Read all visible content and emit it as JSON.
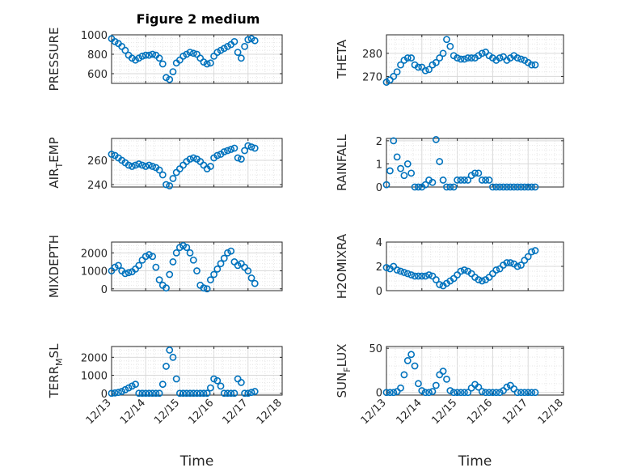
{
  "figure_title": "Figure 2 medium",
  "chart_data": [
    {
      "type": "scatter",
      "title": "Figure 2 medium",
      "ylabel": "PRESSURE",
      "ylabel_sub": "",
      "ylim": [
        500,
        1000
      ],
      "yticks": [
        600,
        800,
        1000
      ],
      "xlim": [
        0,
        5
      ],
      "xticks": [],
      "xlabel": "",
      "grid": true,
      "color": "#0072BD",
      "x": [
        0.0,
        0.1,
        0.2,
        0.3,
        0.4,
        0.5,
        0.6,
        0.7,
        0.8,
        0.9,
        1.0,
        1.1,
        1.2,
        1.3,
        1.4,
        1.5,
        1.6,
        1.7,
        1.8,
        1.9,
        2.0,
        2.1,
        2.2,
        2.3,
        2.4,
        2.5,
        2.6,
        2.7,
        2.8,
        2.9,
        3.0,
        3.1,
        3.2,
        3.3,
        3.4,
        3.5,
        3.6,
        3.7,
        3.8,
        3.9,
        4.0,
        4.1,
        4.2
      ],
      "y": [
        960,
        930,
        910,
        880,
        840,
        790,
        760,
        740,
        760,
        780,
        790,
        790,
        800,
        790,
        760,
        700,
        560,
        540,
        620,
        710,
        740,
        780,
        800,
        820,
        810,
        800,
        760,
        720,
        700,
        710,
        780,
        820,
        840,
        860,
        880,
        900,
        930,
        820,
        760,
        880,
        950,
        960,
        940
      ]
    },
    {
      "type": "scatter",
      "title": "",
      "ylabel": "THETA",
      "ylabel_sub": "",
      "ylim": [
        267,
        288
      ],
      "yticks": [
        270,
        280
      ],
      "xlim": [
        0,
        5
      ],
      "xticks": [],
      "xlabel": "",
      "grid": true,
      "color": "#0072BD",
      "x": [
        0.0,
        0.1,
        0.2,
        0.3,
        0.4,
        0.5,
        0.6,
        0.7,
        0.8,
        0.9,
        1.0,
        1.1,
        1.2,
        1.3,
        1.4,
        1.5,
        1.6,
        1.7,
        1.8,
        1.9,
        2.0,
        2.1,
        2.2,
        2.3,
        2.4,
        2.5,
        2.6,
        2.7,
        2.8,
        2.9,
        3.0,
        3.1,
        3.2,
        3.3,
        3.4,
        3.5,
        3.6,
        3.7,
        3.8,
        3.9,
        4.0,
        4.1,
        4.2
      ],
      "y": [
        267.5,
        268.5,
        270,
        272,
        275,
        277,
        278,
        278,
        275,
        274,
        274,
        272.5,
        273,
        275,
        276,
        278,
        280,
        286,
        283,
        279,
        278,
        277.5,
        277.5,
        278,
        278,
        278,
        279,
        280,
        280.5,
        279,
        278,
        277,
        278,
        278.5,
        277,
        278,
        279,
        278,
        277.5,
        277,
        276,
        275,
        275
      ]
    },
    {
      "type": "scatter",
      "title": "",
      "ylabel": "AIR",
      "ylabel_sub": "T",
      "ylabel_suffix": "EMP",
      "ylim": [
        238,
        278
      ],
      "yticks": [
        240,
        260
      ],
      "xlim": [
        0,
        5
      ],
      "xticks": [],
      "xlabel": "",
      "grid": true,
      "color": "#0072BD",
      "x": [
        0.0,
        0.1,
        0.2,
        0.3,
        0.4,
        0.5,
        0.6,
        0.7,
        0.8,
        0.9,
        1.0,
        1.1,
        1.2,
        1.3,
        1.4,
        1.5,
        1.6,
        1.7,
        1.8,
        1.9,
        2.0,
        2.1,
        2.2,
        2.3,
        2.4,
        2.5,
        2.6,
        2.7,
        2.8,
        2.9,
        3.0,
        3.1,
        3.2,
        3.3,
        3.4,
        3.5,
        3.6,
        3.7,
        3.8,
        3.9,
        4.0,
        4.1,
        4.2
      ],
      "y": [
        265,
        264,
        262,
        260,
        258,
        256,
        255,
        256,
        257,
        256,
        255,
        256,
        255,
        254,
        252,
        248,
        240,
        239,
        245,
        250,
        253,
        256,
        259,
        261,
        262,
        261,
        259,
        256,
        253,
        255,
        262,
        264,
        265,
        267,
        268,
        269,
        270,
        262,
        261,
        268,
        272,
        271,
        270
      ]
    },
    {
      "type": "scatter",
      "title": "",
      "ylabel": "RAINFALL",
      "ylabel_sub": "",
      "ylim": [
        0,
        2.1
      ],
      "yticks": [
        0,
        1,
        2
      ],
      "xlim": [
        0,
        5
      ],
      "xticks": [],
      "xlabel": "",
      "grid": true,
      "color": "#0072BD",
      "x": [
        0.0,
        0.1,
        0.2,
        0.3,
        0.4,
        0.5,
        0.6,
        0.7,
        0.8,
        0.9,
        1.0,
        1.1,
        1.2,
        1.3,
        1.4,
        1.5,
        1.6,
        1.7,
        1.8,
        1.9,
        2.0,
        2.1,
        2.2,
        2.3,
        2.4,
        2.5,
        2.6,
        2.7,
        2.8,
        2.9,
        3.0,
        3.1,
        3.2,
        3.3,
        3.4,
        3.5,
        3.6,
        3.7,
        3.8,
        3.9,
        4.0,
        4.1,
        4.2
      ],
      "y": [
        0.1,
        0.7,
        2.0,
        1.3,
        0.8,
        0.5,
        1.0,
        0.6,
        0.0,
        0.0,
        0.0,
        0.1,
        0.3,
        0.2,
        2.05,
        1.1,
        0.3,
        0.0,
        0.0,
        0.0,
        0.3,
        0.3,
        0.3,
        0.3,
        0.5,
        0.6,
        0.6,
        0.3,
        0.3,
        0.3,
        0.0,
        0.0,
        0.0,
        0.0,
        0.0,
        0.0,
        0.0,
        0.0,
        0.0,
        0.0,
        0.0,
        0.0,
        0.0
      ]
    },
    {
      "type": "scatter",
      "title": "",
      "ylabel": "MIXDEPTH",
      "ylabel_sub": "",
      "ylim": [
        -100,
        2600
      ],
      "yticks": [
        0,
        1000,
        2000
      ],
      "xlim": [
        0,
        5
      ],
      "xticks": [],
      "xlabel": "",
      "grid": true,
      "color": "#0072BD",
      "x": [
        0.0,
        0.1,
        0.2,
        0.3,
        0.4,
        0.5,
        0.6,
        0.7,
        0.8,
        0.9,
        1.0,
        1.1,
        1.2,
        1.3,
        1.4,
        1.5,
        1.6,
        1.7,
        1.8,
        1.9,
        2.0,
        2.1,
        2.2,
        2.3,
        2.4,
        2.5,
        2.6,
        2.7,
        2.8,
        2.9,
        3.0,
        3.1,
        3.2,
        3.3,
        3.4,
        3.5,
        3.6,
        3.7,
        3.8,
        3.9,
        4.0,
        4.1,
        4.2
      ],
      "y": [
        1000,
        1200,
        1300,
        1000,
        850,
        900,
        950,
        1100,
        1300,
        1600,
        1800,
        1900,
        1800,
        1200,
        500,
        200,
        50,
        800,
        1500,
        2000,
        2300,
        2400,
        2300,
        2000,
        1600,
        1000,
        200,
        50,
        0,
        500,
        800,
        1100,
        1400,
        1700,
        2000,
        2100,
        1500,
        1300,
        1400,
        1200,
        1000,
        600,
        300
      ]
    },
    {
      "type": "scatter",
      "title": "",
      "ylabel": "H2OMIXRA",
      "ylabel_sub": "",
      "ylim": [
        0,
        4
      ],
      "yticks": [
        0,
        2,
        4
      ],
      "xlim": [
        0,
        5
      ],
      "xticks": [],
      "xlabel": "",
      "grid": true,
      "color": "#0072BD",
      "x": [
        0.0,
        0.1,
        0.2,
        0.3,
        0.4,
        0.5,
        0.6,
        0.7,
        0.8,
        0.9,
        1.0,
        1.1,
        1.2,
        1.3,
        1.4,
        1.5,
        1.6,
        1.7,
        1.8,
        1.9,
        2.0,
        2.1,
        2.2,
        2.3,
        2.4,
        2.5,
        2.6,
        2.7,
        2.8,
        2.9,
        3.0,
        3.1,
        3.2,
        3.3,
        3.4,
        3.5,
        3.6,
        3.7,
        3.8,
        3.9,
        4.0,
        4.1,
        4.2
      ],
      "y": [
        1.9,
        1.8,
        2.0,
        1.7,
        1.6,
        1.5,
        1.4,
        1.3,
        1.2,
        1.2,
        1.2,
        1.2,
        1.3,
        1.2,
        0.9,
        0.5,
        0.4,
        0.6,
        0.8,
        1.0,
        1.3,
        1.6,
        1.7,
        1.6,
        1.4,
        1.1,
        0.9,
        0.8,
        0.9,
        1.1,
        1.4,
        1.7,
        1.8,
        2.1,
        2.3,
        2.3,
        2.2,
        2.0,
        2.1,
        2.5,
        2.8,
        3.2,
        3.3
      ]
    },
    {
      "type": "scatter",
      "title": "",
      "ylabel": "TERR",
      "ylabel_sub": "M",
      "ylabel_suffix": "SL",
      "ylim": [
        -100,
        2600
      ],
      "yticks": [
        0,
        1000,
        2000
      ],
      "xlim": [
        0,
        5
      ],
      "xticks": [
        "12/13",
        "12/14",
        "12/15",
        "12/16",
        "12/17",
        "12/18"
      ],
      "xlabel": "Time",
      "grid": true,
      "color": "#0072BD",
      "x": [
        0.0,
        0.1,
        0.2,
        0.3,
        0.4,
        0.5,
        0.6,
        0.7,
        0.8,
        0.9,
        1.0,
        1.1,
        1.2,
        1.3,
        1.4,
        1.5,
        1.6,
        1.7,
        1.8,
        1.9,
        2.0,
        2.1,
        2.2,
        2.3,
        2.4,
        2.5,
        2.6,
        2.7,
        2.8,
        2.9,
        3.0,
        3.1,
        3.2,
        3.3,
        3.4,
        3.5,
        3.6,
        3.7,
        3.8,
        3.9,
        4.0,
        4.1,
        4.2
      ],
      "y": [
        0,
        20,
        50,
        100,
        200,
        300,
        400,
        500,
        0,
        0,
        0,
        0,
        0,
        0,
        0,
        500,
        1500,
        2400,
        2000,
        800,
        0,
        0,
        0,
        0,
        0,
        0,
        0,
        0,
        0,
        300,
        800,
        700,
        400,
        0,
        0,
        0,
        0,
        800,
        600,
        0,
        0,
        50,
        100
      ]
    },
    {
      "type": "scatter",
      "title": "",
      "ylabel": "SUN",
      "ylabel_sub": "F",
      "ylabel_suffix": "LUX",
      "ylim": [
        -3,
        52
      ],
      "yticks": [
        0,
        50
      ],
      "xlim": [
        0,
        5
      ],
      "xticks": [
        "12/13",
        "12/14",
        "12/15",
        "12/16",
        "12/17",
        "12/18"
      ],
      "xlabel": "Time",
      "grid": true,
      "color": "#0072BD",
      "x": [
        0.0,
        0.1,
        0.2,
        0.3,
        0.4,
        0.5,
        0.6,
        0.7,
        0.8,
        0.9,
        1.0,
        1.1,
        1.2,
        1.3,
        1.4,
        1.5,
        1.6,
        1.7,
        1.8,
        1.9,
        2.0,
        2.1,
        2.2,
        2.3,
        2.4,
        2.5,
        2.6,
        2.7,
        2.8,
        2.9,
        3.0,
        3.1,
        3.2,
        3.3,
        3.4,
        3.5,
        3.6,
        3.7,
        3.8,
        3.9,
        4.0,
        4.1,
        4.2
      ],
      "y": [
        0,
        0,
        0,
        1,
        5,
        20,
        36,
        43,
        30,
        10,
        2,
        0,
        0,
        1,
        8,
        20,
        24,
        15,
        2,
        0,
        0,
        0,
        0,
        0,
        5,
        9,
        6,
        1,
        0,
        0,
        0,
        0,
        0,
        2,
        6,
        8,
        4,
        0,
        0,
        0,
        0,
        0,
        0
      ]
    }
  ]
}
